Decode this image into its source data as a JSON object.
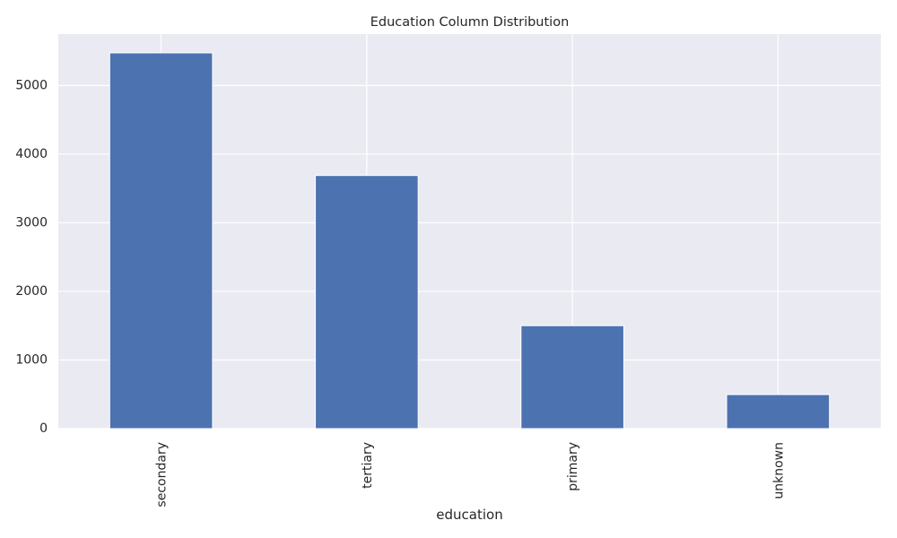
{
  "chart_data": {
    "type": "bar",
    "title": "Education Column Distribution",
    "xlabel": "education",
    "ylabel": "",
    "categories": [
      "secondary",
      "tertiary",
      "primary",
      "unknown"
    ],
    "values": [
      5476,
      3689,
      1500,
      496
    ],
    "ylim": [
      0,
      5750
    ],
    "yticks": [
      0,
      1000,
      2000,
      3000,
      4000,
      5000
    ],
    "grid": true,
    "legend": "none",
    "bar_color": "#4c72b0",
    "plot_background": "#eaeaf2",
    "grid_color": "#ffffff"
  }
}
